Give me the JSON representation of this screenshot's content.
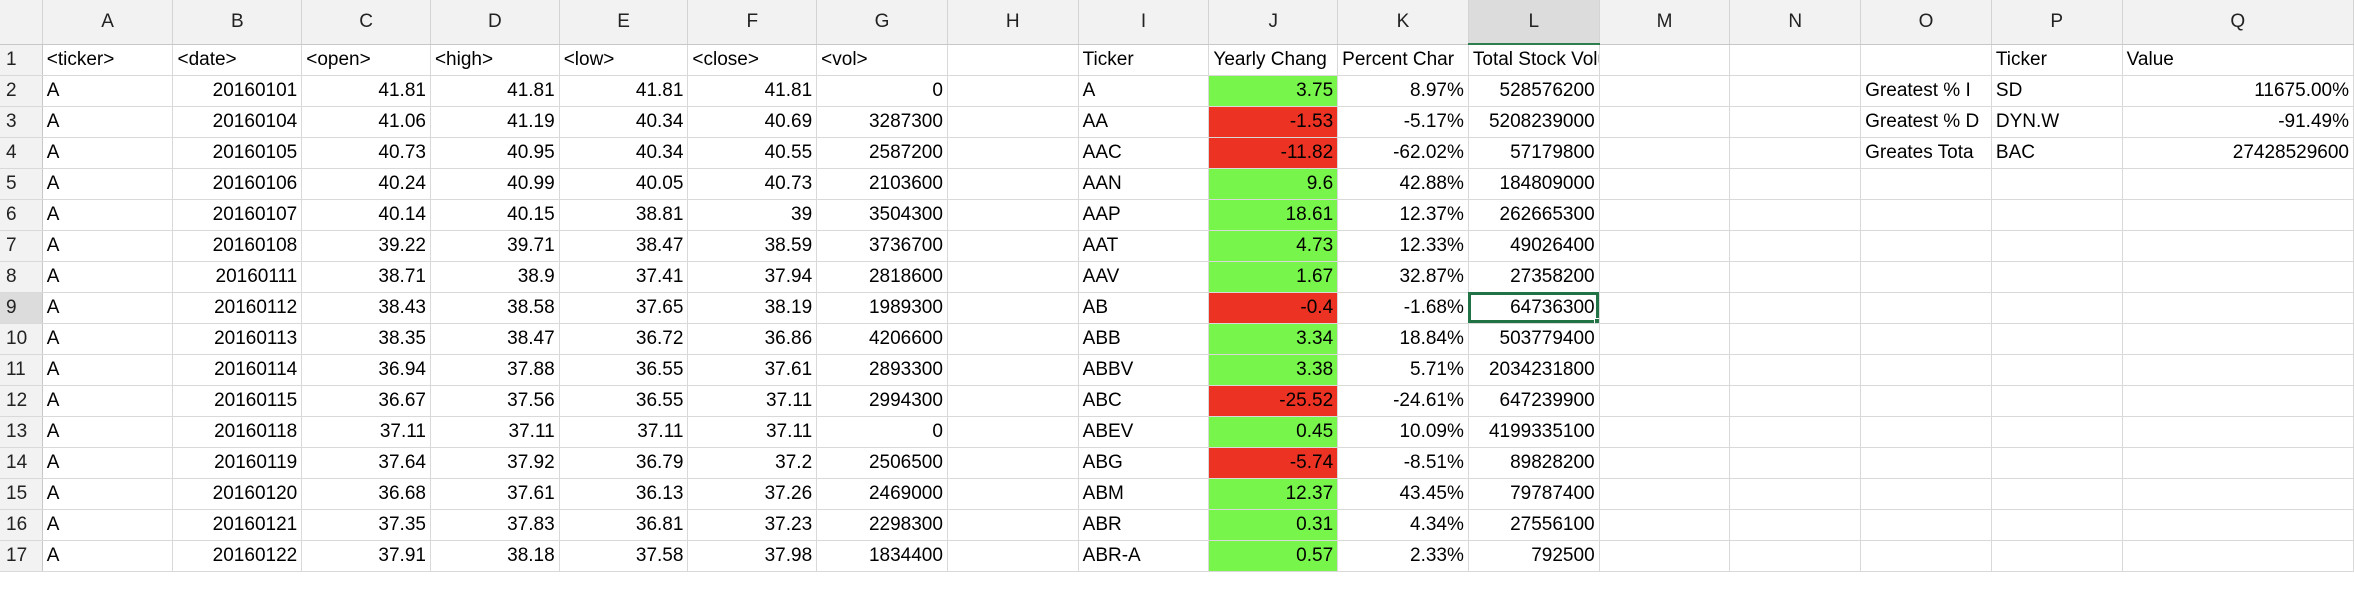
{
  "columns": [
    "A",
    "B",
    "C",
    "D",
    "E",
    "F",
    "G",
    "H",
    "I",
    "J",
    "K",
    "L",
    "M",
    "N",
    "O",
    "P",
    "Q"
  ],
  "rows": [
    [
      "<ticker>",
      "<date>",
      "<open>",
      "<high>",
      "<low>",
      "<close>",
      "<vol>",
      "",
      "Ticker",
      "Yearly Chang",
      "Percent Char",
      "Total Stock Volume",
      "",
      "",
      "",
      "Ticker",
      "Value"
    ],
    [
      "A",
      "20160101",
      "41.81",
      "41.81",
      "41.81",
      "41.81",
      "0",
      "",
      "A",
      "3.75",
      "8.97%",
      "528576200",
      "",
      "",
      "Greatest % I",
      "SD",
      "11675.00%"
    ],
    [
      "A",
      "20160104",
      "41.06",
      "41.19",
      "40.34",
      "40.69",
      "3287300",
      "",
      "AA",
      "-1.53",
      "-5.17%",
      "5208239000",
      "",
      "",
      "Greatest % D",
      "DYN.W",
      "-91.49%"
    ],
    [
      "A",
      "20160105",
      "40.73",
      "40.95",
      "40.34",
      "40.55",
      "2587200",
      "",
      "AAC",
      "-11.82",
      "-62.02%",
      "57179800",
      "",
      "",
      "Greates Tota",
      "BAC",
      "27428529600"
    ],
    [
      "A",
      "20160106",
      "40.24",
      "40.99",
      "40.05",
      "40.73",
      "2103600",
      "",
      "AAN",
      "9.6",
      "42.88%",
      "184809000",
      "",
      "",
      "",
      "",
      ""
    ],
    [
      "A",
      "20160107",
      "40.14",
      "40.15",
      "38.81",
      "39",
      "3504300",
      "",
      "AAP",
      "18.61",
      "12.37%",
      "262665300",
      "",
      "",
      "",
      "",
      ""
    ],
    [
      "A",
      "20160108",
      "39.22",
      "39.71",
      "38.47",
      "38.59",
      "3736700",
      "",
      "AAT",
      "4.73",
      "12.33%",
      "49026400",
      "",
      "",
      "",
      "",
      ""
    ],
    [
      "A",
      "20160111",
      "38.71",
      "38.9",
      "37.41",
      "37.94",
      "2818600",
      "",
      "AAV",
      "1.67",
      "32.87%",
      "27358200",
      "",
      "",
      "",
      "",
      ""
    ],
    [
      "A",
      "20160112",
      "38.43",
      "38.58",
      "37.65",
      "38.19",
      "1989300",
      "",
      "AB",
      "-0.4",
      "-1.68%",
      "64736300",
      "",
      "",
      "",
      "",
      ""
    ],
    [
      "A",
      "20160113",
      "38.35",
      "38.47",
      "36.72",
      "36.86",
      "4206600",
      "",
      "ABB",
      "3.34",
      "18.84%",
      "503779400",
      "",
      "",
      "",
      "",
      ""
    ],
    [
      "A",
      "20160114",
      "36.94",
      "37.88",
      "36.55",
      "37.61",
      "2893300",
      "",
      "ABBV",
      "3.38",
      "5.71%",
      "2034231800",
      "",
      "",
      "",
      "",
      ""
    ],
    [
      "A",
      "20160115",
      "36.67",
      "37.56",
      "36.55",
      "37.11",
      "2994300",
      "",
      "ABC",
      "-25.52",
      "-24.61%",
      "647239900",
      "",
      "",
      "",
      "",
      ""
    ],
    [
      "A",
      "20160118",
      "37.11",
      "37.11",
      "37.11",
      "37.11",
      "0",
      "",
      "ABEV",
      "0.45",
      "10.09%",
      "4199335100",
      "",
      "",
      "",
      "",
      ""
    ],
    [
      "A",
      "20160119",
      "37.64",
      "37.92",
      "36.79",
      "37.2",
      "2506500",
      "",
      "ABG",
      "-5.74",
      "-8.51%",
      "89828200",
      "",
      "",
      "",
      "",
      ""
    ],
    [
      "A",
      "20160120",
      "36.68",
      "37.61",
      "36.13",
      "37.26",
      "2469000",
      "",
      "ABM",
      "12.37",
      "43.45%",
      "79787400",
      "",
      "",
      "",
      "",
      ""
    ],
    [
      "A",
      "20160121",
      "37.35",
      "37.83",
      "36.81",
      "37.23",
      "2298300",
      "",
      "ABR",
      "0.31",
      "4.34%",
      "27556100",
      "",
      "",
      "",
      "",
      ""
    ],
    [
      "A",
      "20160122",
      "37.91",
      "38.18",
      "37.58",
      "37.98",
      "1834400",
      "",
      "ABR-A",
      "0.57",
      "2.33%",
      "792500",
      "",
      "",
      "",
      "",
      ""
    ]
  ],
  "active_cell": {
    "row": 9,
    "col": "L"
  },
  "colors": {
    "positive_fill": "#77f54a",
    "negative_fill": "#ec3323",
    "selection": "#217346"
  }
}
